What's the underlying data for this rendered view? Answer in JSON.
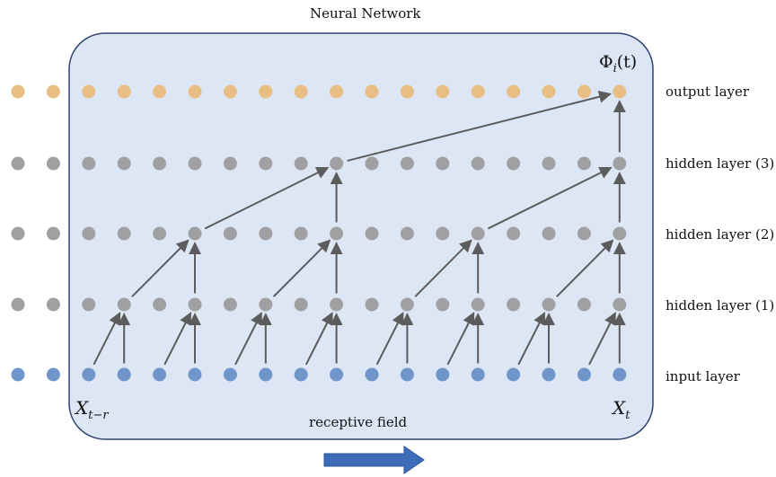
{
  "title": "Neural Network",
  "output_label": "Φ",
  "output_label_sub": "i",
  "output_label_arg": "(t)",
  "layers": [
    {
      "name": "output layer",
      "color": "#E8BE84"
    },
    {
      "name": "hidden layer (3)",
      "color": "#A0A0A3"
    },
    {
      "name": "hidden layer (2)",
      "color": "#A0A0A3"
    },
    {
      "name": "hidden layer (1)",
      "color": "#A0A0A3"
    },
    {
      "name": "input layer",
      "color": "#6F95CB"
    }
  ],
  "nodes_per_layer": 18,
  "input_start_label": "X",
  "input_start_sub": "t−r",
  "input_end_label": "X",
  "input_end_sub": "t",
  "receptive_field_label": "receptive field",
  "colors": {
    "panel_fill": "#DDE6F4",
    "panel_border": "#2E4470",
    "arrow": "#5C5C5C",
    "direction_arrow": "#3D6DB8"
  }
}
